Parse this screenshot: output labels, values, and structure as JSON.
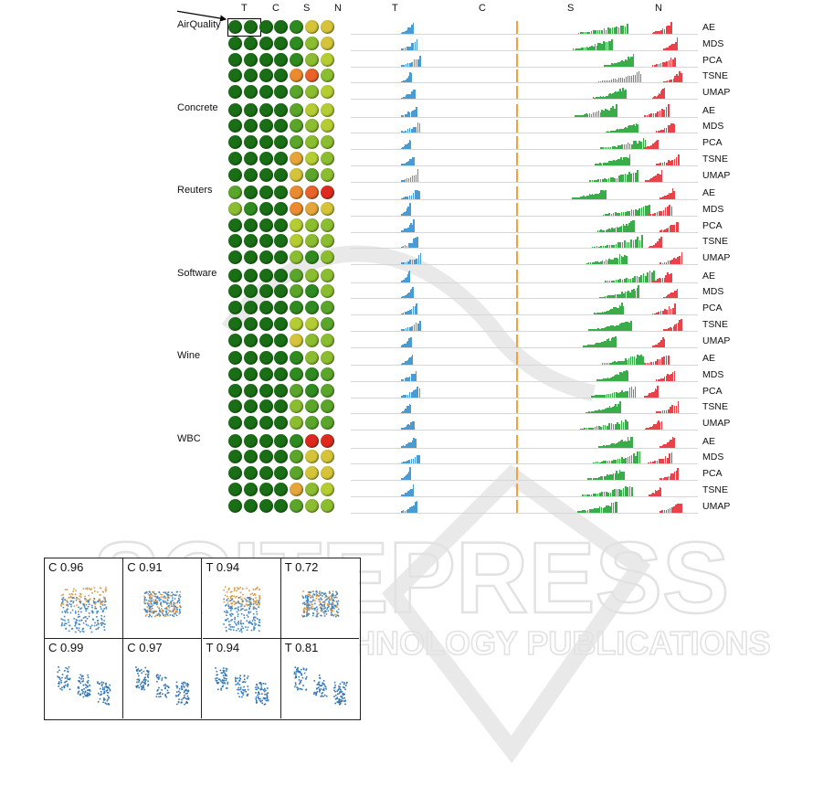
{
  "figure": {
    "column_headers": [
      "T",
      "C",
      "S",
      "N"
    ],
    "datasets": [
      "AirQuality",
      "Concrete",
      "Reuters",
      "Software",
      "Wine",
      "WBC"
    ],
    "methods": [
      "AE",
      "MDS",
      "PCA",
      "TSNE",
      "UMAP"
    ],
    "dot_levels": [
      [
        [
          0,
          0,
          0,
          0,
          1,
          5,
          5
        ],
        [
          0,
          0,
          0,
          0,
          1,
          3,
          5
        ],
        [
          0,
          0,
          0,
          0,
          1,
          3,
          4
        ],
        [
          0,
          0,
          0,
          0,
          7,
          8,
          3
        ],
        [
          0,
          0,
          0,
          0,
          2,
          3,
          4
        ]
      ],
      [
        [
          0,
          0,
          0,
          0,
          2,
          4,
          4
        ],
        [
          0,
          0,
          0,
          0,
          2,
          3,
          4
        ],
        [
          0,
          0,
          0,
          0,
          2,
          3,
          3
        ],
        [
          0,
          0,
          0,
          0,
          6,
          4,
          3
        ],
        [
          0,
          0,
          0,
          0,
          5,
          2,
          3
        ]
      ],
      [
        [
          2,
          0,
          0,
          0,
          7,
          8,
          9
        ],
        [
          3,
          1,
          0,
          0,
          7,
          6,
          5
        ],
        [
          0,
          0,
          0,
          0,
          4,
          3,
          3
        ],
        [
          0,
          0,
          0,
          0,
          4,
          3,
          3
        ],
        [
          0,
          0,
          0,
          0,
          3,
          1,
          3
        ]
      ],
      [
        [
          0,
          0,
          0,
          0,
          2,
          3,
          3
        ],
        [
          0,
          0,
          0,
          0,
          2,
          1,
          3
        ],
        [
          0,
          0,
          0,
          0,
          1,
          1,
          2
        ],
        [
          0,
          0,
          0,
          0,
          4,
          4,
          2
        ],
        [
          0,
          0,
          0,
          0,
          5,
          3,
          3
        ]
      ],
      [
        [
          0,
          0,
          0,
          0,
          1,
          3,
          3
        ],
        [
          0,
          0,
          0,
          0,
          1,
          1,
          2
        ],
        [
          0,
          0,
          0,
          0,
          2,
          1,
          2
        ],
        [
          0,
          0,
          0,
          0,
          3,
          2,
          2
        ],
        [
          0,
          0,
          0,
          0,
          3,
          2,
          2
        ]
      ],
      [
        [
          0,
          0,
          0,
          0,
          1,
          9,
          9
        ],
        [
          0,
          0,
          0,
          0,
          2,
          5,
          5
        ],
        [
          0,
          0,
          0,
          0,
          2,
          5,
          5
        ],
        [
          0,
          0,
          0,
          0,
          6,
          3,
          4
        ],
        [
          0,
          0,
          0,
          0,
          2,
          3,
          3
        ]
      ]
    ],
    "colors": {
      "T": "#4a9bd1",
      "C": "#f5a13a",
      "S": "#3aad4a",
      "N": "#e8434a"
    }
  },
  "scatter_panels": [
    {
      "label": "C 0.96"
    },
    {
      "label": "C 0.91"
    },
    {
      "label": "T 0.94"
    },
    {
      "label": "T 0.72"
    },
    {
      "label": "C 0.99"
    },
    {
      "label": "C 0.97"
    },
    {
      "label": "T 0.94"
    },
    {
      "label": "T 0.81"
    }
  ],
  "watermark": {
    "title": "SCITEPRESS",
    "subtitle": "SCIENCE AND TECHNOLOGY PUBLICATIONS"
  }
}
